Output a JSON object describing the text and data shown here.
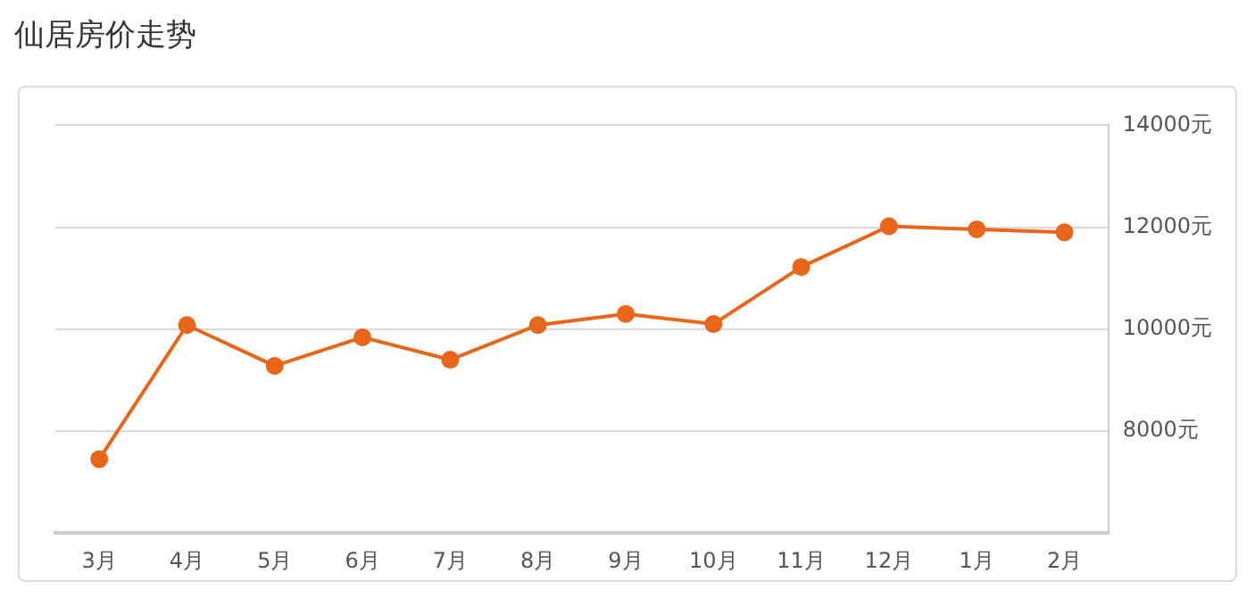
{
  "chart_data": {
    "type": "line",
    "title": "仙居房价走势",
    "categories": [
      "3月",
      "4月",
      "5月",
      "6月",
      "7月",
      "8月",
      "9月",
      "10月",
      "11月",
      "12月",
      "1月",
      "2月"
    ],
    "series": [
      {
        "color": "#e8661a",
        "values": [
          7450,
          10080,
          9280,
          9840,
          9400,
          10080,
          10300,
          10100,
          11220,
          12020,
          11960,
          11900
        ]
      }
    ],
    "ylim": [
      6000,
      14000
    ],
    "yticks": [
      {
        "value": 8000,
        "label": "8000元"
      },
      {
        "value": 10000,
        "label": "10000元"
      },
      {
        "value": 12000,
        "label": "12000元"
      },
      {
        "value": 14000,
        "label": "14000元"
      }
    ],
    "grid": "y",
    "legend": false,
    "marker": "circle",
    "line_style": "solid"
  }
}
